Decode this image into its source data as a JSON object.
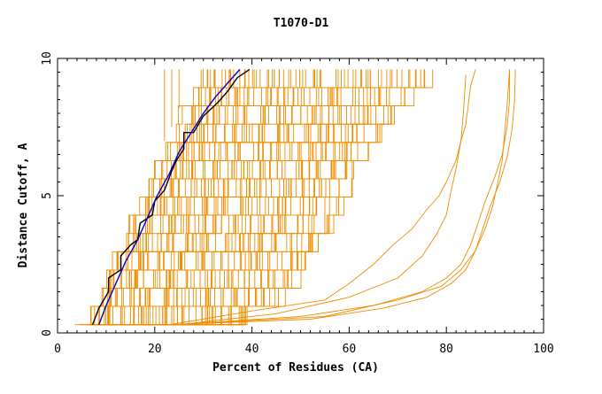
{
  "chart_data": {
    "type": "line",
    "title": "T1070-D1",
    "xlabel": "Percent of Residues (CA)",
    "ylabel": "Distance Cutoff, A",
    "xlim": [
      0,
      100
    ],
    "ylim": [
      0,
      10
    ],
    "xticks": [
      0,
      20,
      40,
      60,
      80,
      100
    ],
    "yticks": [
      0,
      5,
      10
    ],
    "xtick_labels": [
      "0",
      "20",
      "40",
      "60",
      "80",
      "100"
    ],
    "ytick_labels": [
      "0",
      "5",
      "10"
    ],
    "grid": false,
    "colors": {
      "models": "#f08c00",
      "highlight_1": "#000000",
      "highlight_2": "#0000c8"
    },
    "highlight_series": [
      {
        "color": "#000000",
        "x": [
          7.2,
          8.5,
          10.5,
          10.5,
          13,
          13,
          15,
          16.5,
          17,
          19.5,
          20,
          22,
          23.5,
          24.5,
          26,
          26,
          28,
          29,
          30,
          33,
          35,
          37,
          39.5
        ],
        "y": [
          0.3,
          0.9,
          1.5,
          2.0,
          2.3,
          2.8,
          3.2,
          3.4,
          4.0,
          4.3,
          4.8,
          5.2,
          5.9,
          6.3,
          6.7,
          7.3,
          7.3,
          7.6,
          7.9,
          8.4,
          8.8,
          9.3,
          9.6
        ]
      },
      {
        "color": "#0000c8",
        "x": [
          8.5,
          10,
          12,
          14,
          16.5,
          18.5,
          20.5,
          23,
          25,
          27.5,
          30,
          32.5,
          35,
          37.5
        ],
        "y": [
          0.3,
          1.0,
          1.8,
          2.6,
          3.4,
          4.2,
          5.0,
          5.8,
          6.6,
          7.3,
          8.0,
          8.6,
          9.1,
          9.6
        ]
      }
    ],
    "model_band_edges": {
      "left_x": [
        5,
        7,
        9,
        10,
        12,
        14,
        15,
        17,
        19,
        21,
        23,
        25,
        26,
        28,
        30
      ],
      "right_x": [
        24,
        40,
        46,
        49,
        52,
        55,
        57,
        58.5,
        60,
        62,
        64,
        67,
        70,
        73,
        77
      ]
    },
    "outlier_series": [
      {
        "x": [
          23,
          40,
          55,
          60,
          65,
          69,
          73,
          76,
          78.5,
          80,
          82,
          83,
          84,
          84.5,
          85,
          86
        ],
        "y": [
          0.3,
          0.8,
          1.2,
          1.8,
          2.5,
          3.2,
          3.8,
          4.5,
          5.0,
          5.5,
          6.3,
          7.0,
          7.6,
          8.3,
          9.0,
          9.6
        ]
      },
      {
        "x": [
          25,
          45,
          60,
          70,
          75,
          78,
          80,
          81,
          82,
          83,
          83.5,
          84
        ],
        "y": [
          0.3,
          0.7,
          1.3,
          2.0,
          2.8,
          3.6,
          4.3,
          5.2,
          6.0,
          7.0,
          8.0,
          9.4
        ]
      },
      {
        "x": [
          24,
          50,
          65,
          75,
          80,
          83,
          85,
          86.5,
          88,
          90,
          91.5,
          92.5,
          93,
          93
        ],
        "y": [
          0.3,
          0.6,
          1.0,
          1.5,
          2.0,
          2.5,
          3.2,
          4.0,
          4.8,
          5.7,
          6.5,
          7.5,
          8.5,
          9.6
        ]
      },
      {
        "x": [
          23,
          52,
          67,
          76,
          81,
          84,
          86,
          87.5,
          89,
          91,
          92.5,
          93.5,
          94,
          94.2
        ],
        "y": [
          0.3,
          0.5,
          0.9,
          1.3,
          1.8,
          2.3,
          3.0,
          3.8,
          4.6,
          5.5,
          6.4,
          7.4,
          8.4,
          9.6
        ]
      },
      {
        "x": [
          24,
          55,
          70,
          79,
          83,
          86,
          88,
          89.5,
          90.5,
          91.5,
          92,
          92.5,
          93
        ],
        "y": [
          0.3,
          0.6,
          1.2,
          1.7,
          2.3,
          3.0,
          3.8,
          4.6,
          5.4,
          6.3,
          7.3,
          8.3,
          9.6
        ]
      }
    ]
  }
}
